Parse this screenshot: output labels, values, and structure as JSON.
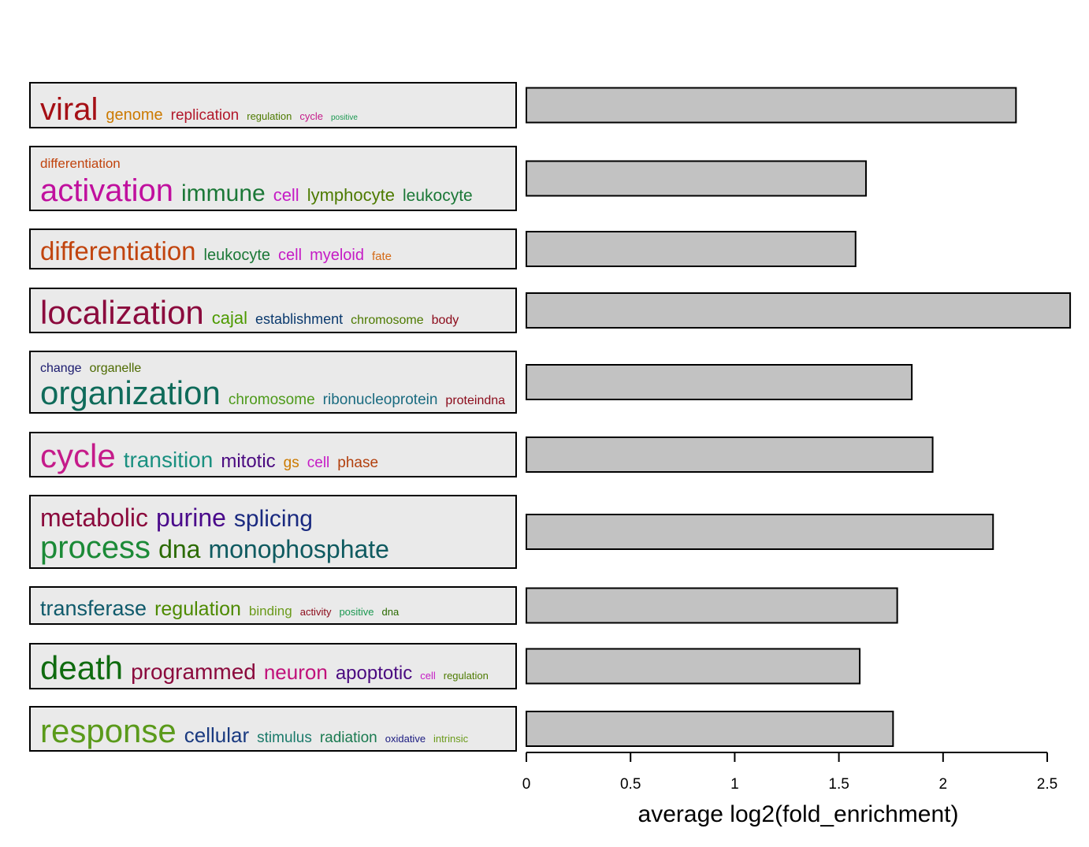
{
  "chart_data": {
    "type": "bar",
    "orientation": "horizontal",
    "xlabel": "average log2(fold_enrichment)",
    "xlim": [
      0,
      2.6
    ],
    "xticks": [
      "0",
      "0.5",
      "1",
      "1.5",
      "2",
      "2.5"
    ],
    "tick_values": [
      0,
      0.5,
      1,
      1.5,
      2,
      2.5
    ],
    "bar_color": "#c2c2c2",
    "box_fill": "#eaeaea",
    "clusters": [
      {
        "value": 2.35,
        "lines": [
          [
            {
              "text": "viral",
              "size": 40,
              "color": "#a50f15"
            },
            {
              "text": "genome",
              "size": 20,
              "color": "#cc7a00"
            },
            {
              "text": "replication",
              "size": 19,
              "color": "#b2182b"
            },
            {
              "text": "regulation",
              "size": 13,
              "color": "#4d7a00"
            },
            {
              "text": "cycle",
              "size": 13,
              "color": "#c51b8a"
            },
            {
              "text": "positive",
              "size": 10,
              "color": "#1a9850"
            }
          ]
        ]
      },
      {
        "value": 1.63,
        "lines": [
          [
            {
              "text": "differentiation",
              "size": 17,
              "color": "#c1440e"
            }
          ],
          [
            {
              "text": "activation",
              "size": 40,
              "color": "#c0109e"
            },
            {
              "text": "immune",
              "size": 30,
              "color": "#1b7837"
            },
            {
              "text": "cell",
              "size": 22,
              "color": "#c51bc5"
            },
            {
              "text": "lymphocyte",
              "size": 22,
              "color": "#4d7a00"
            },
            {
              "text": "leukocyte",
              "size": 21,
              "color": "#1b7837"
            }
          ]
        ]
      },
      {
        "value": 1.58,
        "lines": [
          [
            {
              "text": "differentiation",
              "size": 33,
              "color": "#c1440e"
            },
            {
              "text": "leukocyte",
              "size": 20,
              "color": "#1b7837"
            },
            {
              "text": "cell",
              "size": 20,
              "color": "#c51bc5"
            },
            {
              "text": "myeloid",
              "size": 20,
              "color": "#c51bc5"
            },
            {
              "text": "fate",
              "size": 15,
              "color": "#d46a16"
            }
          ]
        ]
      },
      {
        "value": 2.61,
        "lines": [
          [
            {
              "text": "localization",
              "size": 42,
              "color": "#8b0a3d"
            },
            {
              "text": "cajal",
              "size": 22,
              "color": "#4d9a00"
            },
            {
              "text": "establishment",
              "size": 18,
              "color": "#0b3a6e"
            },
            {
              "text": "chromosome",
              "size": 16,
              "color": "#4d7a00"
            },
            {
              "text": "body",
              "size": 16,
              "color": "#8b0a1a"
            }
          ]
        ]
      },
      {
        "value": 1.85,
        "lines": [
          [
            {
              "text": "change",
              "size": 16,
              "color": "#1a1a6e"
            },
            {
              "text": "organelle",
              "size": 16,
              "color": "#4d6a00"
            }
          ],
          [
            {
              "text": "organization",
              "size": 42,
              "color": "#0f6b5a"
            },
            {
              "text": "chromosome",
              "size": 19,
              "color": "#4d9a1a"
            },
            {
              "text": "ribonucleoprotein",
              "size": 19,
              "color": "#1a6b80"
            },
            {
              "text": "proteindna",
              "size": 16,
              "color": "#8b0a1a"
            }
          ]
        ]
      },
      {
        "value": 1.95,
        "lines": [
          [
            {
              "text": "cycle",
              "size": 42,
              "color": "#c51b8a"
            },
            {
              "text": "transition",
              "size": 28,
              "color": "#1a9080"
            },
            {
              "text": "mitotic",
              "size": 24,
              "color": "#4a0a80"
            },
            {
              "text": "gs",
              "size": 19,
              "color": "#cc7a00"
            },
            {
              "text": "cell",
              "size": 19,
              "color": "#c51bc5"
            },
            {
              "text": "phase",
              "size": 19,
              "color": "#b2400e"
            }
          ]
        ]
      },
      {
        "value": 2.24,
        "lines": [
          [
            {
              "text": "metabolic",
              "size": 32,
              "color": "#8b0a3d"
            },
            {
              "text": "purine",
              "size": 32,
              "color": "#4a0a8b"
            },
            {
              "text": "splicing",
              "size": 30,
              "color": "#1a2a80"
            }
          ],
          [
            {
              "text": "process",
              "size": 40,
              "color": "#1b8a37"
            },
            {
              "text": "dna",
              "size": 32,
              "color": "#2a6a00"
            },
            {
              "text": "monophosphate",
              "size": 32,
              "color": "#0f5a60"
            }
          ]
        ]
      },
      {
        "value": 1.78,
        "lines": [
          [
            {
              "text": "transferase",
              "size": 27,
              "color": "#0f5a6b"
            },
            {
              "text": "regulation",
              "size": 25,
              "color": "#4d8a00"
            },
            {
              "text": "binding",
              "size": 17,
              "color": "#6a9a1a"
            },
            {
              "text": "activity",
              "size": 13,
              "color": "#8b0a1a"
            },
            {
              "text": "positive",
              "size": 13,
              "color": "#1a9850"
            },
            {
              "text": "dna",
              "size": 13,
              "color": "#2a6a00"
            }
          ]
        ]
      },
      {
        "value": 1.6,
        "lines": [
          [
            {
              "text": "death",
              "size": 42,
              "color": "#0f6b0f"
            },
            {
              "text": "programmed",
              "size": 28,
              "color": "#8b0a3d"
            },
            {
              "text": "neuron",
              "size": 26,
              "color": "#c0107a"
            },
            {
              "text": "apoptotic",
              "size": 24,
              "color": "#4a0a80"
            },
            {
              "text": "cell",
              "size": 13,
              "color": "#c51bc5"
            },
            {
              "text": "regulation",
              "size": 13,
              "color": "#4d7a00"
            }
          ]
        ]
      },
      {
        "value": 1.76,
        "lines": [
          [
            {
              "text": "response",
              "size": 42,
              "color": "#5a9a1a"
            },
            {
              "text": "cellular",
              "size": 26,
              "color": "#1a3a80"
            },
            {
              "text": "stimulus",
              "size": 19,
              "color": "#1a7a6a"
            },
            {
              "text": "radiation",
              "size": 19,
              "color": "#1a7a50"
            },
            {
              "text": "oxidative",
              "size": 13,
              "color": "#1a1a80"
            },
            {
              "text": "intrinsic",
              "size": 13,
              "color": "#6a9a1a"
            }
          ]
        ]
      }
    ]
  }
}
